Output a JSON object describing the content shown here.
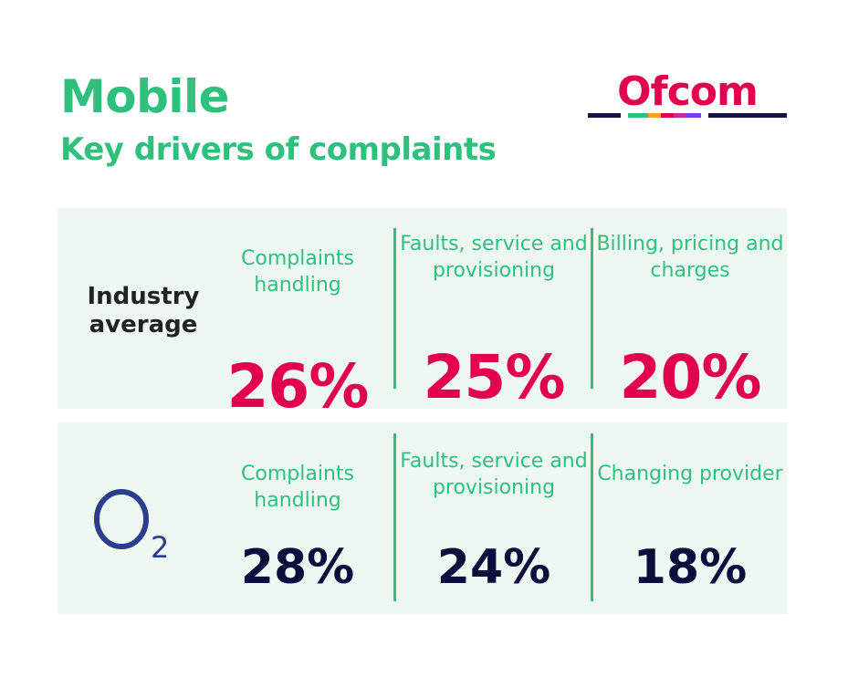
{
  "header": {
    "title": "Mobile",
    "subtitle": "Key drivers of complaints",
    "logo_text": "Ofcom"
  },
  "colors": {
    "accent_green": "#30c07e",
    "pink": "#e2004e",
    "navy": "#0d0d3d",
    "o2_blue": "#2b3d8c"
  },
  "rows": [
    {
      "label": "Industry average",
      "cells": [
        {
          "label": "Complaints handling",
          "value": "26%"
        },
        {
          "label": "Faults, service and provisioning",
          "value": "25%"
        },
        {
          "label": "Billing, pricing and charges",
          "value": "20%"
        }
      ]
    },
    {
      "label_logo": "O2",
      "cells": [
        {
          "label": "Complaints handling",
          "value": "28%"
        },
        {
          "label": "Faults, service and provisioning",
          "value": "24%"
        },
        {
          "label": "Changing provider",
          "value": "18%"
        }
      ]
    }
  ]
}
